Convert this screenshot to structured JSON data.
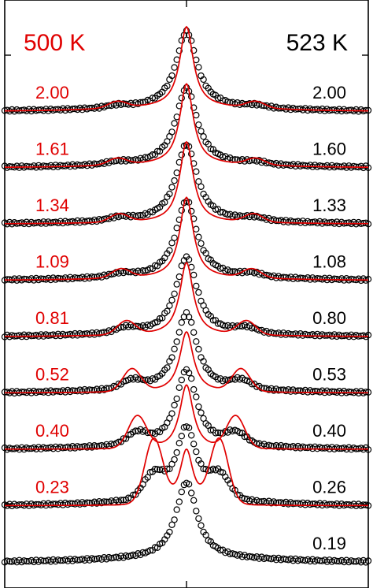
{
  "chart_data": {
    "type": "line",
    "title": "",
    "xlabel": "",
    "ylabel": "",
    "header_left": "500 K",
    "header_right": "523 K",
    "colors": {
      "model": "#e00000",
      "data": "#000000"
    },
    "x_range": [
      -1,
      1
    ],
    "y_unit_range": [
      0,
      1
    ],
    "series": [
      {
        "label_left": "2.00",
        "label_right": "2.00",
        "peak": 1.0,
        "side_amp": 0.08,
        "side_pos": 0.38,
        "tail": 0.05
      },
      {
        "label_left": "1.61",
        "label_right": "1.60",
        "peak": 1.0,
        "side_amp": 0.08,
        "side_pos": 0.38,
        "tail": 0.04
      },
      {
        "label_left": "1.34",
        "label_right": "1.33",
        "peak": 1.0,
        "side_amp": 0.1,
        "side_pos": 0.37,
        "tail": 0.02
      },
      {
        "label_left": "1.09",
        "label_right": "1.08",
        "peak": 1.0,
        "side_amp": 0.11,
        "side_pos": 0.36,
        "tail": 0.03
      },
      {
        "label_left": "0.81",
        "label_right": "0.80",
        "peak": 0.9,
        "side_amp": 0.17,
        "side_pos": 0.33,
        "tail": 0.02
      },
      {
        "label_left": "0.52",
        "label_right": "0.53",
        "peak": 0.75,
        "side_amp": 0.28,
        "side_pos": 0.3,
        "tail": 0.01
      },
      {
        "label_left": "0.40",
        "label_right": "0.40",
        "peak": 0.8,
        "side_amp": 0.4,
        "side_pos": 0.27,
        "tail": 0.0
      },
      {
        "label_left": "0.23",
        "label_right": "0.26",
        "peak": 0.7,
        "side_amp": 0.8,
        "side_pos": 0.18,
        "tail": 0.0
      },
      {
        "label_left": "",
        "label_right": "0.19",
        "peak": 0.55,
        "side_amp": 0.0,
        "side_pos": 0.0,
        "tail": 0.0,
        "no_model": true
      }
    ]
  }
}
